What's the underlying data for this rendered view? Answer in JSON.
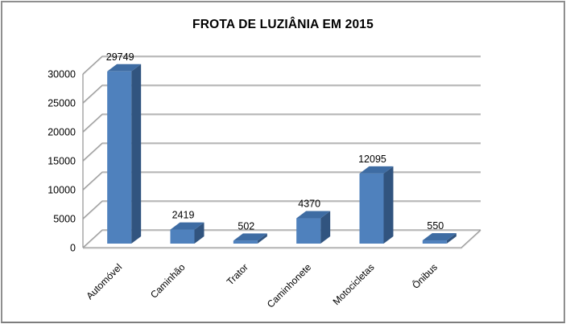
{
  "window": {
    "background": "#FFFFFF",
    "frame_border_color": "#8F8F8F"
  },
  "chart_data": {
    "type": "bar",
    "subtype": "3d-column",
    "title": "FROTA DE LUZIÂNIA EM 2015",
    "categories": [
      "Automóvel",
      "Caminhão",
      "Trator",
      "Caminhonete",
      "Motocicletas",
      "Ônibus"
    ],
    "values": [
      29749,
      2419,
      502,
      4370,
      12095,
      550
    ],
    "data_labels": [
      "29749",
      "2419",
      "502",
      "4370",
      "12095",
      "550"
    ],
    "y_ticks": [
      0,
      5000,
      10000,
      15000,
      20000,
      25000,
      30000
    ],
    "ylim": [
      0,
      30000
    ],
    "xlabel": "",
    "ylabel": "",
    "grid": true,
    "legend": "none",
    "data_labels_visible": true,
    "x_label_rotation_deg": -45,
    "colors": {
      "bar_front": "#4F81BD",
      "bar_top": "#3E6CA3",
      "bar_side": "#31547F",
      "gridline": "#9b9b9b",
      "gridline_highlight": "#dddddd",
      "axis": "#9b9b9b",
      "text": "#000000",
      "background": "#FFFFFF"
    }
  }
}
